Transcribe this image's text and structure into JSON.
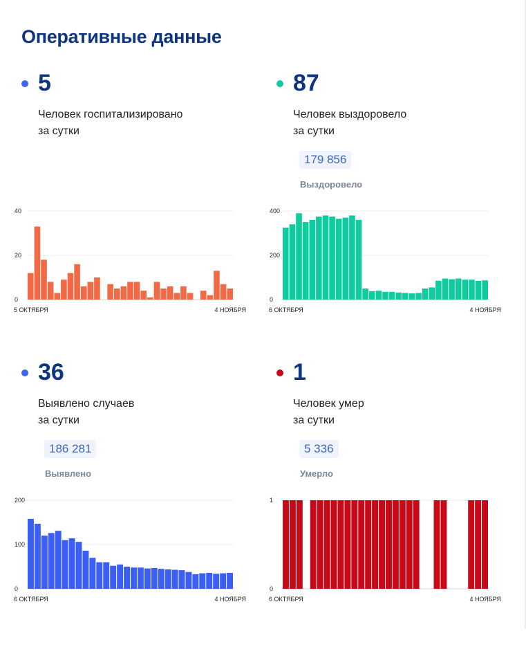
{
  "title": "Оперативные данные",
  "cards": {
    "hospitalized": {
      "number": "5",
      "line1": "Человек госпитализировано",
      "line2": "за сутки",
      "dot_color": "#3b66f0",
      "bar_color": "#f26a45"
    },
    "recovered": {
      "number": "87",
      "line1": "Человек выздоровело",
      "line2": "за сутки",
      "total": "179 856",
      "total_label": "Выздоровело",
      "dot_color": "#14c8a0",
      "bar_color": "#0fcc9e"
    },
    "cases": {
      "number": "36",
      "line1": "Выявлено случаев",
      "line2": "за сутки",
      "total": "186 281",
      "total_label": "Выявлено",
      "dot_color": "#3b66f0",
      "bar_color": "#3a5ff2"
    },
    "deaths": {
      "number": "1",
      "line1": "Человек умер",
      "line2": "за сутки",
      "total": "5 336",
      "total_label": "Умерло",
      "dot_color": "#c80a18",
      "bar_color": "#c80a18"
    }
  },
  "chart_data": [
    {
      "type": "bar",
      "id": "hospitalized",
      "x_start_label": "5 ОКТЯБРЯ",
      "x_end_label": "4 НОЯБРЯ",
      "ylim": [
        0,
        40
      ],
      "yticks": [
        0,
        20,
        40
      ],
      "values": [
        12,
        33,
        18,
        8,
        3,
        9,
        12,
        16,
        6,
        8,
        10,
        0,
        7,
        5,
        6,
        8,
        8,
        4,
        1,
        8,
        5,
        6,
        3,
        6,
        3,
        0,
        4,
        2,
        13,
        7,
        5
      ]
    },
    {
      "type": "bar",
      "id": "recovered",
      "x_start_label": "6 ОКТЯБРЯ",
      "x_end_label": "4 НОЯБРЯ",
      "ylim": [
        0,
        400
      ],
      "yticks": [
        0,
        200,
        400
      ],
      "values": [
        325,
        340,
        390,
        350,
        360,
        375,
        380,
        375,
        365,
        370,
        380,
        360,
        50,
        38,
        40,
        35,
        35,
        32,
        30,
        28,
        30,
        50,
        55,
        85,
        95,
        92,
        95,
        90,
        90,
        85,
        87
      ]
    },
    {
      "type": "bar",
      "id": "cases",
      "x_start_label": "6 ОКТЯБРЯ",
      "x_end_label": "4 НОЯБРЯ",
      "ylim": [
        0,
        200
      ],
      "yticks": [
        0,
        100,
        200
      ],
      "values": [
        158,
        147,
        120,
        126,
        131,
        110,
        114,
        106,
        86,
        70,
        60,
        60,
        52,
        55,
        50,
        48,
        48,
        46,
        47,
        45,
        44,
        43,
        42,
        38,
        33,
        35,
        36,
        34,
        35,
        36
      ]
    },
    {
      "type": "bar",
      "id": "deaths",
      "x_start_label": "6 ОКТЯБРЯ",
      "x_end_label": "4 НОЯБРЯ",
      "ylim": [
        0,
        1
      ],
      "yticks": [
        0,
        1
      ],
      "values": [
        1,
        1,
        1,
        0,
        1,
        1,
        1,
        1,
        1,
        1,
        1,
        1,
        1,
        1,
        1,
        1,
        1,
        1,
        1,
        1,
        0,
        0,
        1,
        1,
        0,
        0,
        0,
        1,
        1,
        1
      ]
    }
  ]
}
